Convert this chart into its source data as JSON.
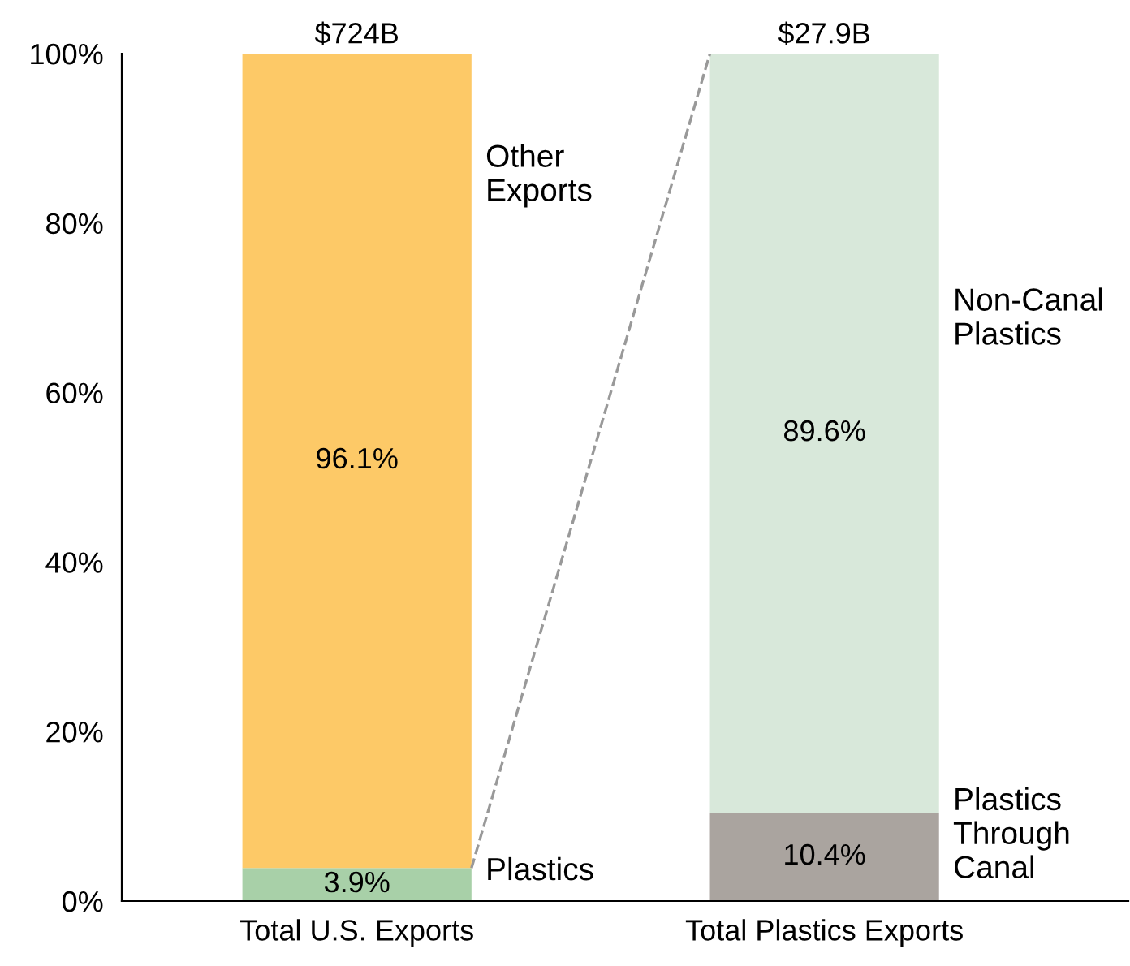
{
  "chart_data": {
    "type": "bar",
    "stacked": true,
    "categories": [
      "Total U.S. Exports",
      "Total Plastics Exports"
    ],
    "series": [
      {
        "name": "Plastics",
        "color": "#a8d0a8",
        "values": [
          3.9,
          null
        ],
        "value_labels": [
          "3.9%",
          null
        ]
      },
      {
        "name": "Plastics Through Canal",
        "color": "#aaa49f",
        "values": [
          null,
          10.4
        ],
        "value_labels": [
          null,
          "10.4%"
        ]
      },
      {
        "name": "Other Exports",
        "color": "#fdc967",
        "values": [
          96.1,
          null
        ],
        "value_labels": [
          "96.1%",
          null
        ]
      },
      {
        "name": "Non-Canal Plastics",
        "color": "#d8e8da",
        "values": [
          null,
          89.6
        ],
        "value_labels": [
          null,
          "89.6%"
        ]
      }
    ],
    "annotations": [
      {
        "text": "$724B",
        "x": "Total U.S. Exports",
        "y": 100
      },
      {
        "text": "$27.9B",
        "x": "Total Plastics Exports",
        "y": 100
      }
    ],
    "ylim": [
      0,
      100
    ],
    "yticks": [
      {
        "value": 0,
        "label": "0%"
      },
      {
        "value": 20,
        "label": "20%"
      },
      {
        "value": 40,
        "label": "40%"
      },
      {
        "value": 60,
        "label": "60%"
      },
      {
        "value": 80,
        "label": "80%"
      },
      {
        "value": 100,
        "label": "100%"
      }
    ],
    "grid": false,
    "legend": false
  }
}
